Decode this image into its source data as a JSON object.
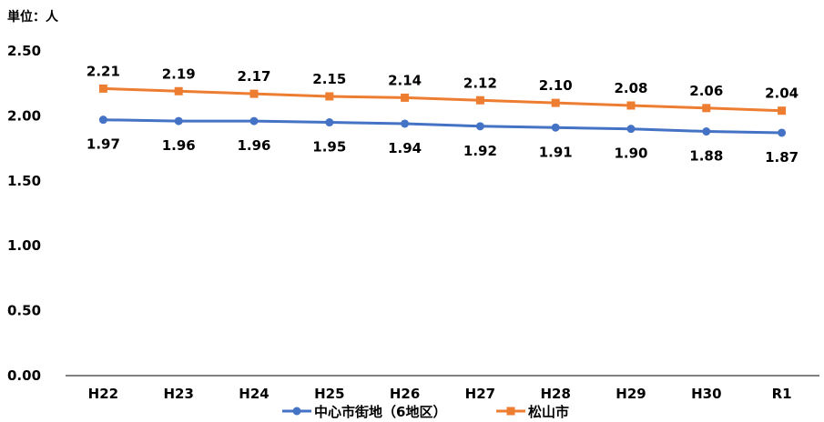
{
  "unit_label": "単位：人",
  "colors": {
    "series_1": "#4472C4",
    "series_2": "#ED7D31",
    "axis": "#000000"
  },
  "chart_data": {
    "type": "line",
    "categories": [
      "H22",
      "H23",
      "H24",
      "H25",
      "H26",
      "H27",
      "H28",
      "H29",
      "H30",
      "R1"
    ],
    "ylim": [
      0,
      2.5
    ],
    "yticks": [
      "0.00",
      "0.50",
      "1.00",
      "1.50",
      "2.00",
      "2.50"
    ],
    "grid": false,
    "legend_position": "bottom",
    "series": [
      {
        "name": "中心市街地（6地区）",
        "marker": "circle",
        "label_position": "below",
        "values": [
          1.97,
          1.96,
          1.96,
          1.95,
          1.94,
          1.92,
          1.91,
          1.9,
          1.88,
          1.87
        ],
        "labels": [
          "1.97",
          "1.96",
          "1.96",
          "1.95",
          "1.94",
          "1.92",
          "1.91",
          "1.90",
          "1.88",
          "1.87"
        ]
      },
      {
        "name": "松山市",
        "marker": "square",
        "label_position": "above",
        "values": [
          2.21,
          2.19,
          2.17,
          2.15,
          2.14,
          2.12,
          2.1,
          2.08,
          2.06,
          2.04
        ],
        "labels": [
          "2.21",
          "2.19",
          "2.17",
          "2.15",
          "2.14",
          "2.12",
          "2.10",
          "2.08",
          "2.06",
          "2.04"
        ]
      }
    ]
  }
}
